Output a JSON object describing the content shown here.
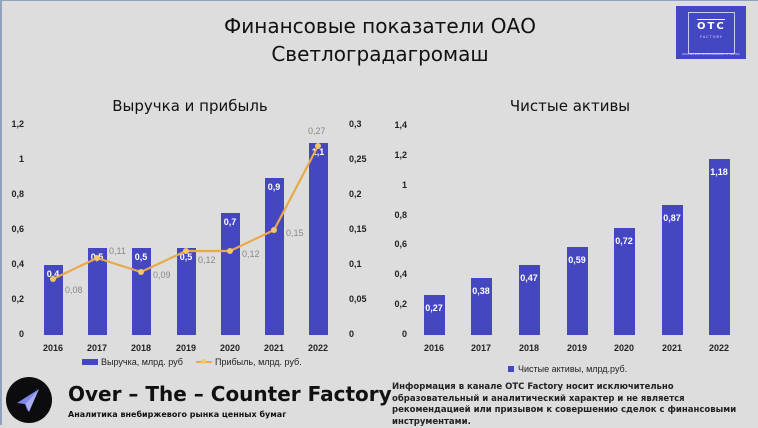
{
  "header": {
    "title_line1": "Финансовые показатели ОАО",
    "title_line2": "Светлоградагромаш",
    "logo": {
      "mark": "OTC",
      "sub1": "FACTORY",
      "caption": "АНАЛИТИКА ВНЕБИРЖЕВОГО РЫНКА"
    }
  },
  "colors": {
    "bar": "#4447bf",
    "line": "#e7a94a",
    "background": "#dddddd"
  },
  "chart_data": [
    {
      "type": "bar+line",
      "title": "Выручка и прибыль",
      "categories": [
        "2016",
        "2017",
        "2018",
        "2019",
        "2020",
        "2021",
        "2022"
      ],
      "series": [
        {
          "name": "Выручка, млрд. руб",
          "type": "bar",
          "axis": "left",
          "values": [
            0.4,
            0.5,
            0.5,
            0.5,
            0.7,
            0.9,
            1.1
          ],
          "labels": [
            "0,4",
            "0,5",
            "0,5",
            "0,5",
            "0,7",
            "0,9",
            "1,1"
          ]
        },
        {
          "name": "Прибыль, млрд. руб.",
          "type": "line",
          "axis": "right",
          "values": [
            0.08,
            0.11,
            0.09,
            0.12,
            0.12,
            0.15,
            0.27
          ],
          "labels": [
            "0,08",
            "0,11",
            "0,09",
            "0,12",
            "0,12",
            "0,15",
            "0,27"
          ]
        }
      ],
      "y_left": {
        "ylim": [
          0,
          1.2
        ],
        "ticks": [
          "0",
          "0,2",
          "0,4",
          "0,6",
          "0,8",
          "1",
          "1,2"
        ]
      },
      "y_right": {
        "ylim": [
          0,
          0.3
        ],
        "ticks": [
          "0",
          "0,05",
          "0,1",
          "0,15",
          "0,2",
          "0,25",
          "0,3"
        ]
      },
      "grid": false,
      "legend_position": "bottom"
    },
    {
      "type": "bar",
      "title": "Чистые активы",
      "categories": [
        "2016",
        "2017",
        "2018",
        "2019",
        "2020",
        "2021",
        "2022"
      ],
      "series": [
        {
          "name": "Чистые активы, млрд.руб.",
          "values": [
            0.27,
            0.38,
            0.47,
            0.59,
            0.72,
            0.87,
            1.18
          ],
          "labels": [
            "0,27",
            "0,38",
            "0,47",
            "0,59",
            "0,72",
            "0,87",
            "1,18"
          ]
        }
      ],
      "y_left": {
        "ylim": [
          0,
          1.4
        ],
        "ticks": [
          "0",
          "0,2",
          "0,4",
          "0,6",
          "0,8",
          "1",
          "1,2",
          "1,4"
        ]
      },
      "grid": false,
      "legend_position": "bottom"
    }
  ],
  "footer": {
    "brand": "Over – The – Counter Factory",
    "brand_sub": "Аналитика внебиржевого рынка ценных бумаг",
    "disclaimer": "Информация в канале OTC Factory носит исключительно образовательный и аналитический характер и не является рекомендацией или призывом к совершению сделок с финансовыми инструментами.",
    "icon": "telegram-paper-plane-icon"
  }
}
